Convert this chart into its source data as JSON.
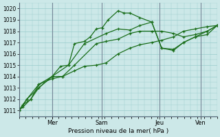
{
  "background_color": "#cce8e8",
  "grid_color": "#99cccc",
  "line_color": "#1a6e1a",
  "xlabel": "Pression niveau de la mer( hPa )",
  "ylim": [
    1010.5,
    1020.5
  ],
  "yticks": [
    1011,
    1012,
    1013,
    1014,
    1015,
    1016,
    1017,
    1018,
    1019,
    1020
  ],
  "day_labels": [
    "Mer",
    "Sam",
    "Jeu",
    "Ven"
  ],
  "vline_positions": [
    0.167,
    0.417,
    0.708,
    0.917
  ],
  "xlim": [
    0,
    1.0
  ],
  "series": [
    {
      "x": [
        0.0,
        0.02,
        0.06,
        0.1,
        0.167,
        0.22,
        0.28,
        0.33,
        0.39,
        0.44,
        0.5,
        0.56,
        0.61,
        0.67,
        0.72,
        0.78,
        0.83,
        0.89,
        0.95,
        1.0
      ],
      "y": [
        1011.0,
        1011.5,
        1012.0,
        1013.3,
        1013.8,
        1014.0,
        1014.5,
        1014.9,
        1015.0,
        1015.2,
        1016.0,
        1016.5,
        1016.8,
        1017.0,
        1017.2,
        1017.5,
        1018.0,
        1018.2,
        1018.4,
        1018.5
      ]
    },
    {
      "x": [
        0.0,
        0.02,
        0.06,
        0.1,
        0.167,
        0.22,
        0.28,
        0.39,
        0.44,
        0.5,
        0.56,
        0.61,
        0.67,
        0.72,
        0.78,
        0.83,
        0.89,
        0.95,
        1.0
      ],
      "y": [
        1011.0,
        1011.3,
        1012.0,
        1013.0,
        1014.0,
        1014.0,
        1015.0,
        1016.9,
        1017.1,
        1017.3,
        1017.8,
        1018.0,
        1018.0,
        1018.0,
        1017.8,
        1017.5,
        1017.7,
        1018.0,
        1018.5
      ]
    },
    {
      "x": [
        0.0,
        0.04,
        0.1,
        0.167,
        0.21,
        0.25,
        0.28,
        0.33,
        0.36,
        0.39,
        0.42,
        0.45,
        0.5,
        0.53,
        0.56,
        0.61,
        0.67,
        0.72,
        0.78,
        0.83,
        0.89,
        0.95,
        1.0
      ],
      "y": [
        1011.0,
        1012.0,
        1013.3,
        1014.0,
        1014.9,
        1015.0,
        1016.9,
        1017.1,
        1017.5,
        1018.2,
        1018.3,
        1019.0,
        1019.8,
        1019.6,
        1019.6,
        1019.2,
        1018.8,
        1016.5,
        1016.4,
        1017.0,
        1017.5,
        1017.7,
        1018.5
      ]
    },
    {
      "x": [
        0.0,
        0.04,
        0.1,
        0.167,
        0.25,
        0.33,
        0.44,
        0.5,
        0.56,
        0.61,
        0.67,
        0.72,
        0.78,
        0.83,
        0.89,
        0.95,
        1.0
      ],
      "y": [
        1011.0,
        1012.0,
        1013.0,
        1014.0,
        1015.0,
        1016.9,
        1017.8,
        1018.2,
        1018.1,
        1018.5,
        1018.8,
        1016.5,
        1016.3,
        1017.0,
        1017.5,
        1018.0,
        1018.5
      ]
    }
  ]
}
